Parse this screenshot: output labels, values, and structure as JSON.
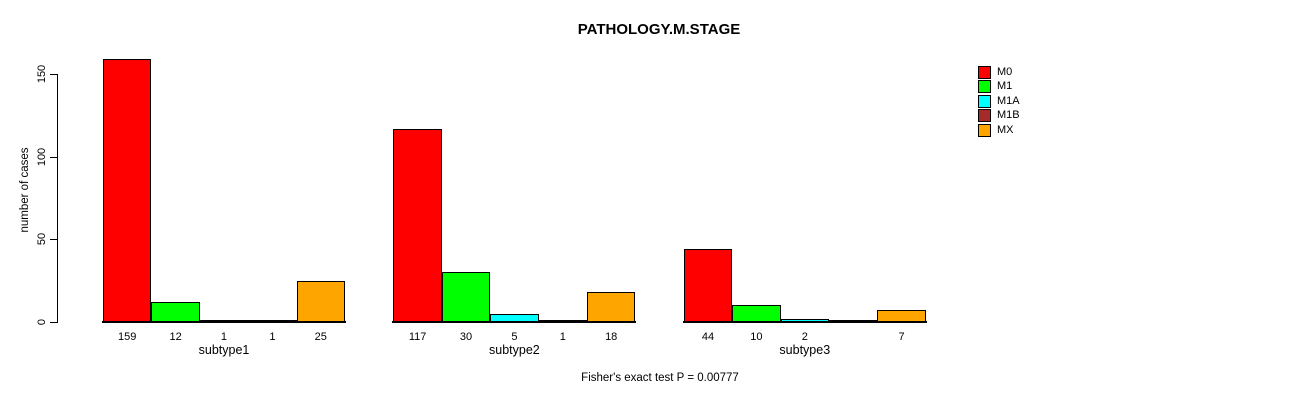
{
  "chart_data": {
    "type": "bar",
    "title": "PATHOLOGY.M.STAGE",
    "ylabel": "number of cases",
    "xlabel": "",
    "footer": "Fisher's exact test P = 0.00777",
    "ylim": [
      0,
      150
    ],
    "yticks": [
      0,
      50,
      100,
      150
    ],
    "grid": false,
    "legend_position": "right",
    "categories": [
      "subtype1",
      "subtype2",
      "subtype3"
    ],
    "series": [
      {
        "name": "M0",
        "color": "#FF0000",
        "values": [
          159,
          117,
          44
        ]
      },
      {
        "name": "M1",
        "color": "#00FF00",
        "values": [
          12,
          30,
          10
        ]
      },
      {
        "name": "M1A",
        "color": "#00FFFF",
        "values": [
          1,
          5,
          2
        ]
      },
      {
        "name": "M1B",
        "color": "#A52A2A",
        "values": [
          1,
          1,
          0
        ]
      },
      {
        "name": "MX",
        "color": "#FFA500",
        "values": [
          25,
          18,
          7
        ]
      }
    ],
    "bar_value_labels": [
      [
        "159",
        "12",
        "1",
        "1",
        "25"
      ],
      [
        "117",
        "30",
        "5",
        "1",
        "18"
      ],
      [
        "44",
        "10",
        "2",
        "",
        "7"
      ]
    ]
  }
}
